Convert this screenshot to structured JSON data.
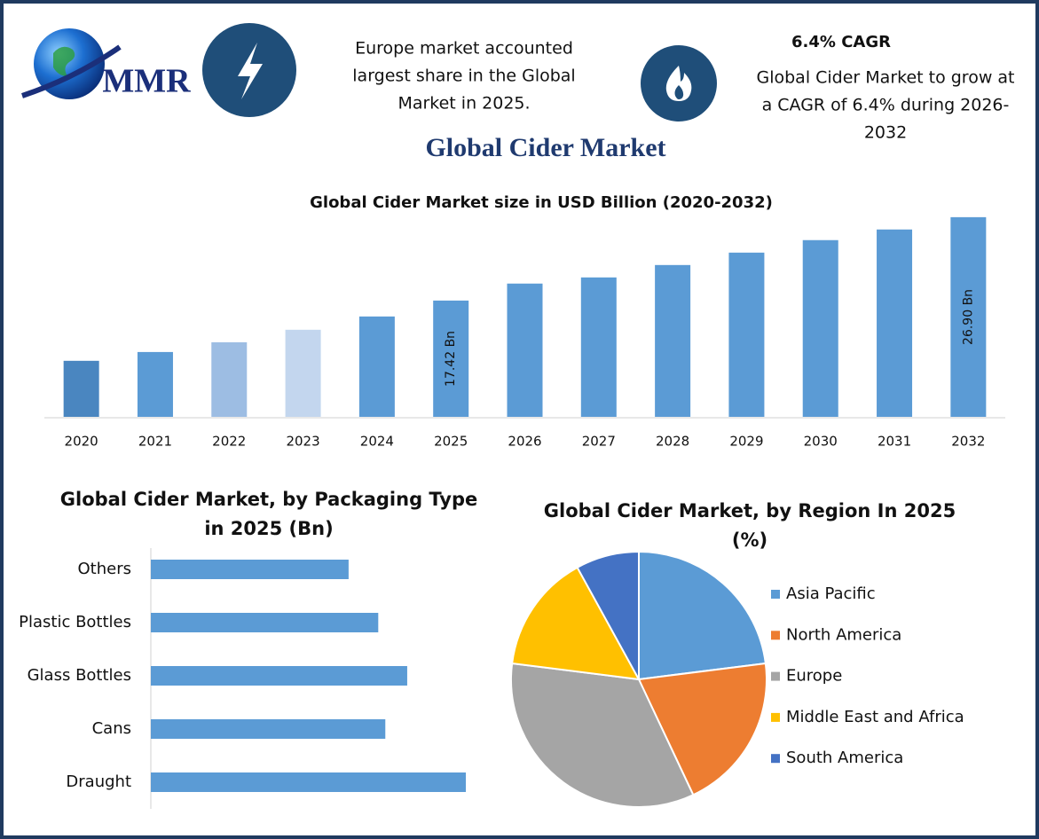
{
  "header": {
    "logo": "MMR",
    "highlight": [
      "Europe market accounted",
      "largest share in the Global",
      "Market in 2025."
    ],
    "cagr_title": "6.4% CAGR",
    "cagr_text": [
      "Global Cider Market to grow at",
      "a CAGR of 6.4% during 2026-",
      "2032"
    ],
    "title": "Global Cider Market"
  },
  "chart_data": [
    {
      "type": "bar",
      "title": [
        "Global Cider Market size in USD Billion (2020-2032)"
      ],
      "categories": [
        "2020",
        "2021",
        "2022",
        "2023",
        "2024",
        "2025",
        "2026",
        "2027",
        "2028",
        "2029",
        "2030",
        "2031",
        "2032"
      ],
      "values": [
        10.57,
        11.57,
        12.68,
        14.1,
        15.61,
        17.42,
        19.35,
        20.05,
        21.46,
        22.87,
        24.29,
        25.5,
        26.9
      ],
      "value_labels": [
        null,
        null,
        null,
        null,
        null,
        "17.42 Bn",
        null,
        null,
        null,
        null,
        null,
        null,
        "26.90 Bn"
      ],
      "colors": [
        "#4a86c0",
        "#5b9bd5",
        "#9dbde3",
        "#c3d6ee",
        "#5b9bd5",
        "#5b9bd5",
        "#5b9bd5",
        "#5b9bd5",
        "#5b9bd5",
        "#5b9bd5",
        "#5b9bd5",
        "#5b9bd5",
        "#5b9bd5"
      ],
      "ylim": [
        4.2,
        28.5
      ]
    },
    {
      "type": "hbar",
      "title": [
        "Global Cider Market, by Packaging Type",
        "in 2025 (Bn)"
      ],
      "categories": [
        "Others",
        "Plastic Bottles",
        "Glass Bottles",
        "Cans",
        "Draught"
      ],
      "values": [
        2.8,
        3.22,
        3.63,
        3.32,
        4.46
      ],
      "color": "#5b9bd5",
      "xlim": [
        0,
        5
      ]
    },
    {
      "type": "pie",
      "title": [
        "Global Cider Market, by Region In 2025",
        "(%)"
      ],
      "categories": [
        "Asia Pacific",
        "North America",
        "Europe",
        "Middle East and Africa",
        "South America"
      ],
      "values": [
        23,
        20,
        34,
        15,
        8
      ],
      "colors": [
        "#5b9bd5",
        "#ed7d31",
        "#a5a5a5",
        "#ffc000",
        "#4472c4"
      ]
    }
  ]
}
